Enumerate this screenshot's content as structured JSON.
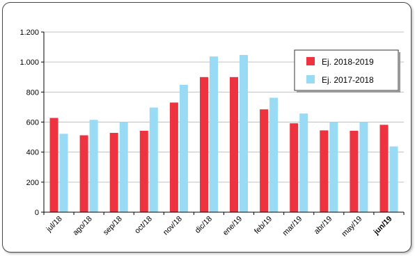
{
  "chart_data": {
    "type": "bar",
    "title": "",
    "xlabel": "",
    "ylabel": "",
    "categories": [
      "jul/18",
      "ago/18",
      "sep/18",
      "oct/18",
      "nov/18",
      "dic/18",
      "ene/19",
      "feb/19",
      "mar/19",
      "abr/19",
      "may/19",
      "jun/19"
    ],
    "highlight_category": "jun/19",
    "series": [
      {
        "name": "Ej. 2018-2019",
        "color": "#ee3340",
        "values": [
          628,
          512,
          528,
          542,
          730,
          900,
          900,
          685,
          592,
          545,
          542,
          582
        ]
      },
      {
        "name": "Ej. 2017-2018",
        "color": "#99daf5",
        "values": [
          522,
          615,
          600,
          697,
          848,
          1037,
          1047,
          762,
          657,
          600,
          600,
          438
        ]
      }
    ],
    "ylim": [
      0,
      1200
    ],
    "yticks": [
      0,
      200,
      400,
      600,
      800,
      1000,
      1200
    ],
    "ytick_labels": [
      "0",
      "200",
      "400",
      "600",
      "800",
      "1.000",
      "1.200"
    ],
    "grid": true,
    "legend_position": "top-right"
  }
}
